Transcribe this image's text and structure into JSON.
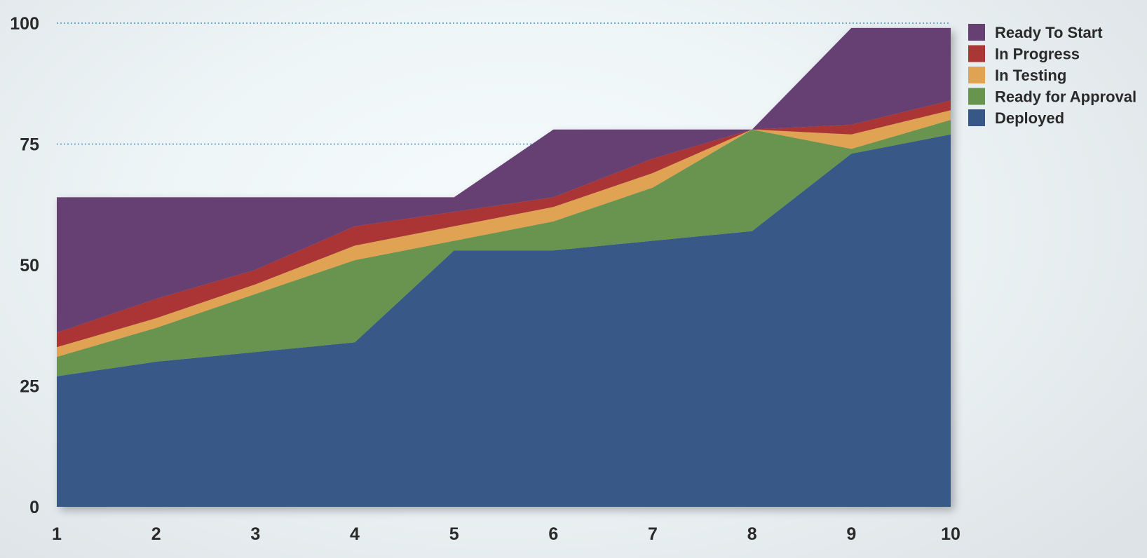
{
  "chart_data": {
    "type": "area",
    "stacked": true,
    "x": [
      1,
      2,
      3,
      4,
      5,
      6,
      7,
      8,
      9,
      10
    ],
    "ylim": [
      0,
      100
    ],
    "yticks": [
      0,
      25,
      50,
      75,
      100
    ],
    "grid": "dotted lines at 75 and 100",
    "legend_position": "top-right",
    "series": [
      {
        "name": "Deployed",
        "color": "#375887",
        "values": [
          27,
          30,
          32,
          34,
          53,
          53,
          55,
          57,
          73,
          77
        ]
      },
      {
        "name": "Ready for Approval",
        "color": "#67944f",
        "values": [
          4,
          7,
          12,
          17,
          2,
          6,
          11,
          21,
          1,
          3
        ]
      },
      {
        "name": "In Testing",
        "color": "#e0a352",
        "values": [
          2,
          2,
          2,
          3,
          3,
          3,
          3,
          0,
          3,
          2
        ]
      },
      {
        "name": "In Progress",
        "color": "#ab3636",
        "values": [
          3,
          4,
          3,
          4,
          3,
          2,
          3,
          0,
          2,
          2
        ]
      },
      {
        "name": "Ready To Start",
        "color": "#663f73",
        "values": [
          28,
          21,
          15,
          6,
          3,
          14,
          6,
          0,
          20,
          15
        ]
      }
    ],
    "legend_order": [
      "Ready To Start",
      "In Progress",
      "In Testing",
      "Ready for Approval",
      "Deployed"
    ]
  }
}
